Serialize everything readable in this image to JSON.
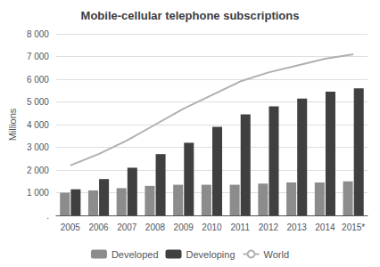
{
  "chart_data": {
    "type": "bar",
    "title": "Mobile-cellular telephone subscriptions",
    "ylabel": "Millions",
    "categories": [
      "2005",
      "2006",
      "2007",
      "2008",
      "2009",
      "2010",
      "2011",
      "2012",
      "2013",
      "2014",
      "2015*"
    ],
    "series": [
      {
        "name": "Developed",
        "type": "bar",
        "color": "#8c8c8c",
        "values": [
          1000,
          1100,
          1200,
          1300,
          1350,
          1350,
          1350,
          1400,
          1450,
          1450,
          1500
        ]
      },
      {
        "name": "Developing",
        "type": "bar",
        "color": "#404040",
        "values": [
          1150,
          1600,
          2100,
          2700,
          3200,
          3900,
          4450,
          4800,
          5150,
          5450,
          5600
        ]
      },
      {
        "name": "World",
        "type": "line",
        "color": "#b0b0b0",
        "values": [
          2200,
          2700,
          3300,
          4000,
          4700,
          5300,
          5900,
          6300,
          6600,
          6900,
          7100
        ]
      }
    ],
    "ylim": [
      0,
      8000
    ],
    "yticks": [
      {
        "value": 0,
        "label": "."
      },
      {
        "value": 1000,
        "label": "1 000"
      },
      {
        "value": 2000,
        "label": "2 000"
      },
      {
        "value": 3000,
        "label": "3 000"
      },
      {
        "value": 4000,
        "label": "4 000"
      },
      {
        "value": 5000,
        "label": "5 000"
      },
      {
        "value": 6000,
        "label": "6 000"
      },
      {
        "value": 7000,
        "label": "7 000"
      },
      {
        "value": 8000,
        "label": "8 000"
      }
    ],
    "grid": true,
    "legend": "bottom"
  }
}
